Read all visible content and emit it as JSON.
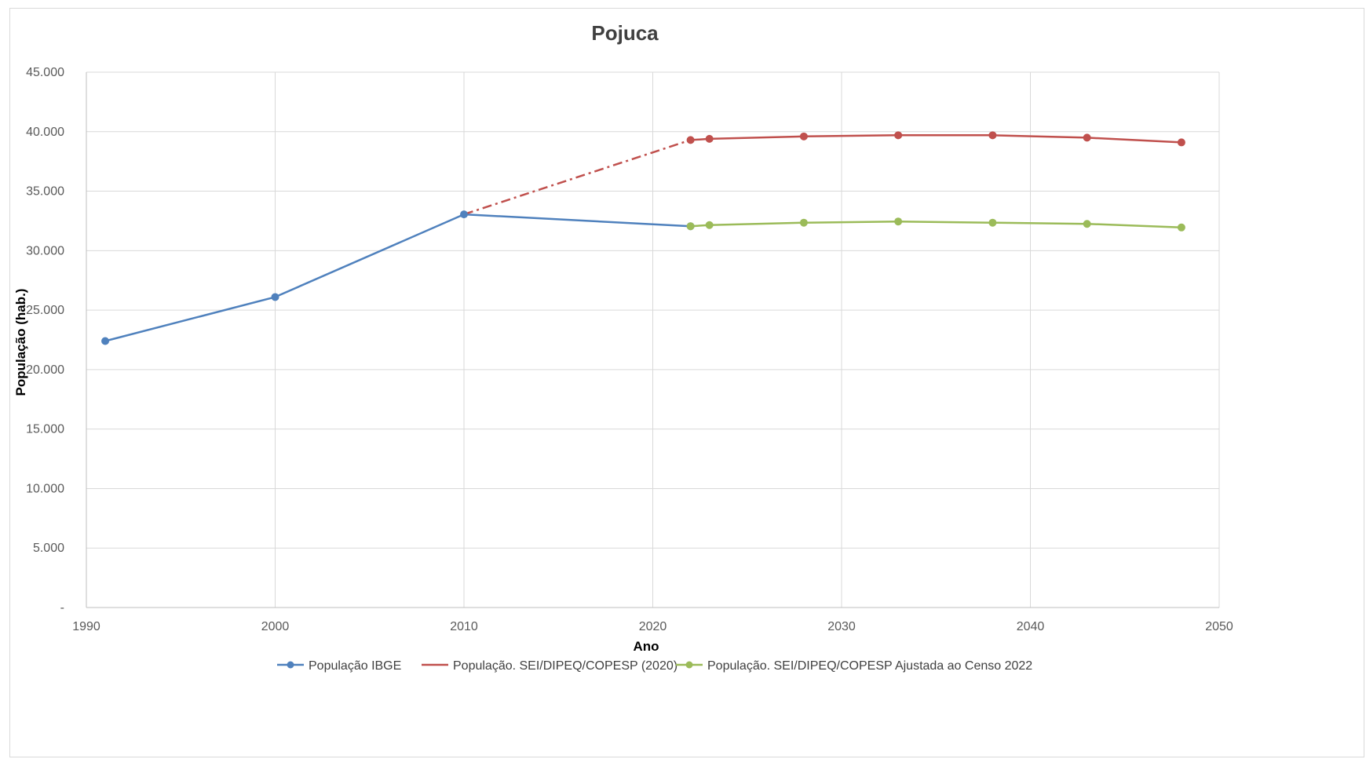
{
  "chart_data": {
    "type": "line",
    "title": "Pojuca",
    "xlabel": "Ano",
    "ylabel": "População (hab.)",
    "xlim": [
      1990,
      2050
    ],
    "ylim": [
      0,
      45000
    ],
    "x_ticks": [
      1990,
      2000,
      2010,
      2020,
      2030,
      2040,
      2050
    ],
    "x_tick_labels": [
      "1990",
      "2000",
      "2010",
      "2020",
      "2030",
      "2040",
      "2050"
    ],
    "y_ticks": [
      0,
      5000,
      10000,
      15000,
      20000,
      25000,
      30000,
      35000,
      40000,
      45000
    ],
    "y_tick_labels": [
      "-",
      "5.000",
      "10.000",
      "15.000",
      "20.000",
      "25.000",
      "30.000",
      "35.000",
      "40.000",
      "45.000"
    ],
    "grid": true,
    "legend_position": "bottom",
    "series": [
      {
        "name": "População IBGE",
        "color": "#4f81bd",
        "x": [
          1991,
          2000,
          2010,
          2022
        ],
        "y": [
          22400,
          26100,
          33050,
          32050
        ]
      },
      {
        "name": "População. SEI/DIPEQ/COPESP (2020)",
        "color": "#c0504d",
        "x": [
          2022,
          2023,
          2028,
          2033,
          2038,
          2043,
          2048
        ],
        "y": [
          39300,
          39400,
          39600,
          39700,
          39700,
          39500,
          39100
        ],
        "dashed_link_from": [
          2010,
          33050
        ]
      },
      {
        "name": "População. SEI/DIPEQ/COPESP Ajustada ao Censo 2022",
        "color": "#9bbb59",
        "x": [
          2022,
          2023,
          2028,
          2033,
          2038,
          2043,
          2048
        ],
        "y": [
          32050,
          32150,
          32350,
          32450,
          32350,
          32250,
          31950
        ]
      }
    ]
  }
}
